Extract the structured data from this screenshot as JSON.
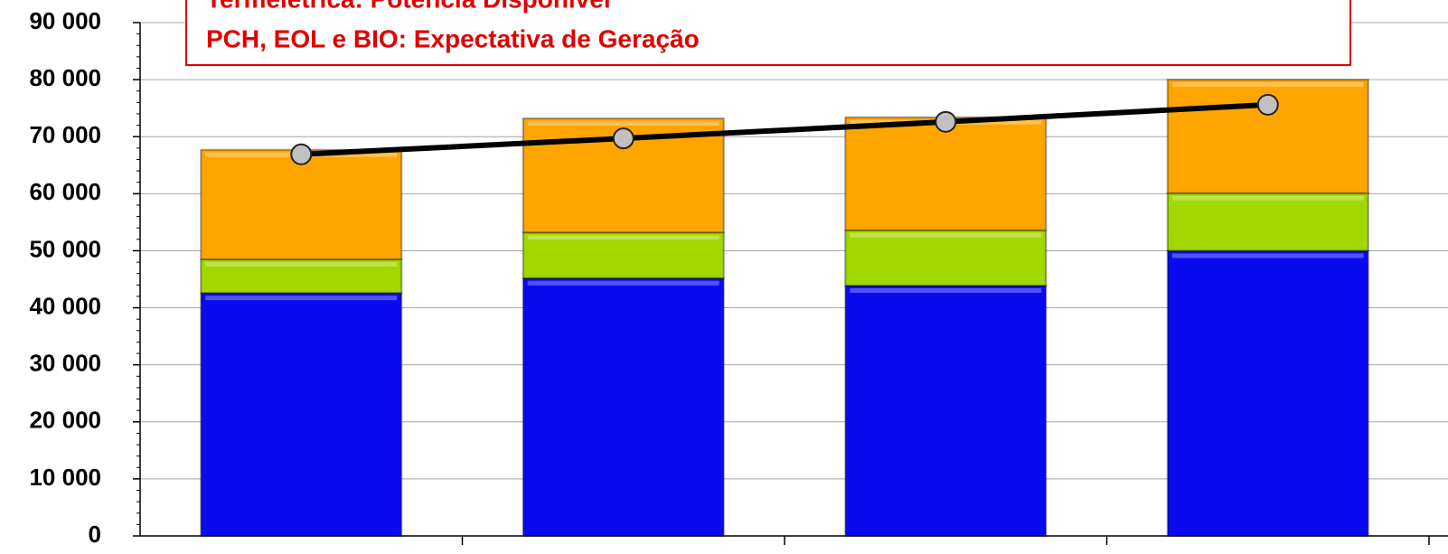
{
  "chart_data": {
    "type": "bar",
    "stacked": true,
    "annotations": [
      "Termelétrica: Potência Disponível",
      "PCH, EOL e BIO: Expectativa de Geração"
    ],
    "categories": [
      null,
      null,
      null,
      null
    ],
    "series": [
      {
        "type": "bar",
        "color": "#0a0af0",
        "values": [
          42600,
          45200,
          43900,
          50000
        ]
      },
      {
        "type": "bar",
        "color": "#a0d800",
        "values": [
          5900,
          8000,
          9700,
          10100
        ]
      },
      {
        "type": "bar",
        "color": "#ffa500",
        "values": [
          19200,
          20000,
          19800,
          19900
        ]
      },
      {
        "type": "line",
        "color": "#000000",
        "values": [
          66900,
          69700,
          72600,
          75600
        ]
      }
    ],
    "ylim": [
      0,
      90000
    ],
    "yticks": [
      0,
      {
        "value": 10000,
        "label": "10 000"
      },
      {
        "value": 20000,
        "label": "20 000"
      },
      {
        "value": 30000,
        "label": "30 000"
      },
      {
        "value": 40000,
        "label": "40 000"
      },
      {
        "value": 50000,
        "label": "50 000"
      },
      {
        "value": 60000,
        "label": "60 000"
      },
      {
        "value": 70000,
        "label": "70 000"
      },
      {
        "value": 80000,
        "label": "80 000"
      },
      {
        "value": 90000,
        "label": "90 000"
      }
    ],
    "grid": true
  }
}
